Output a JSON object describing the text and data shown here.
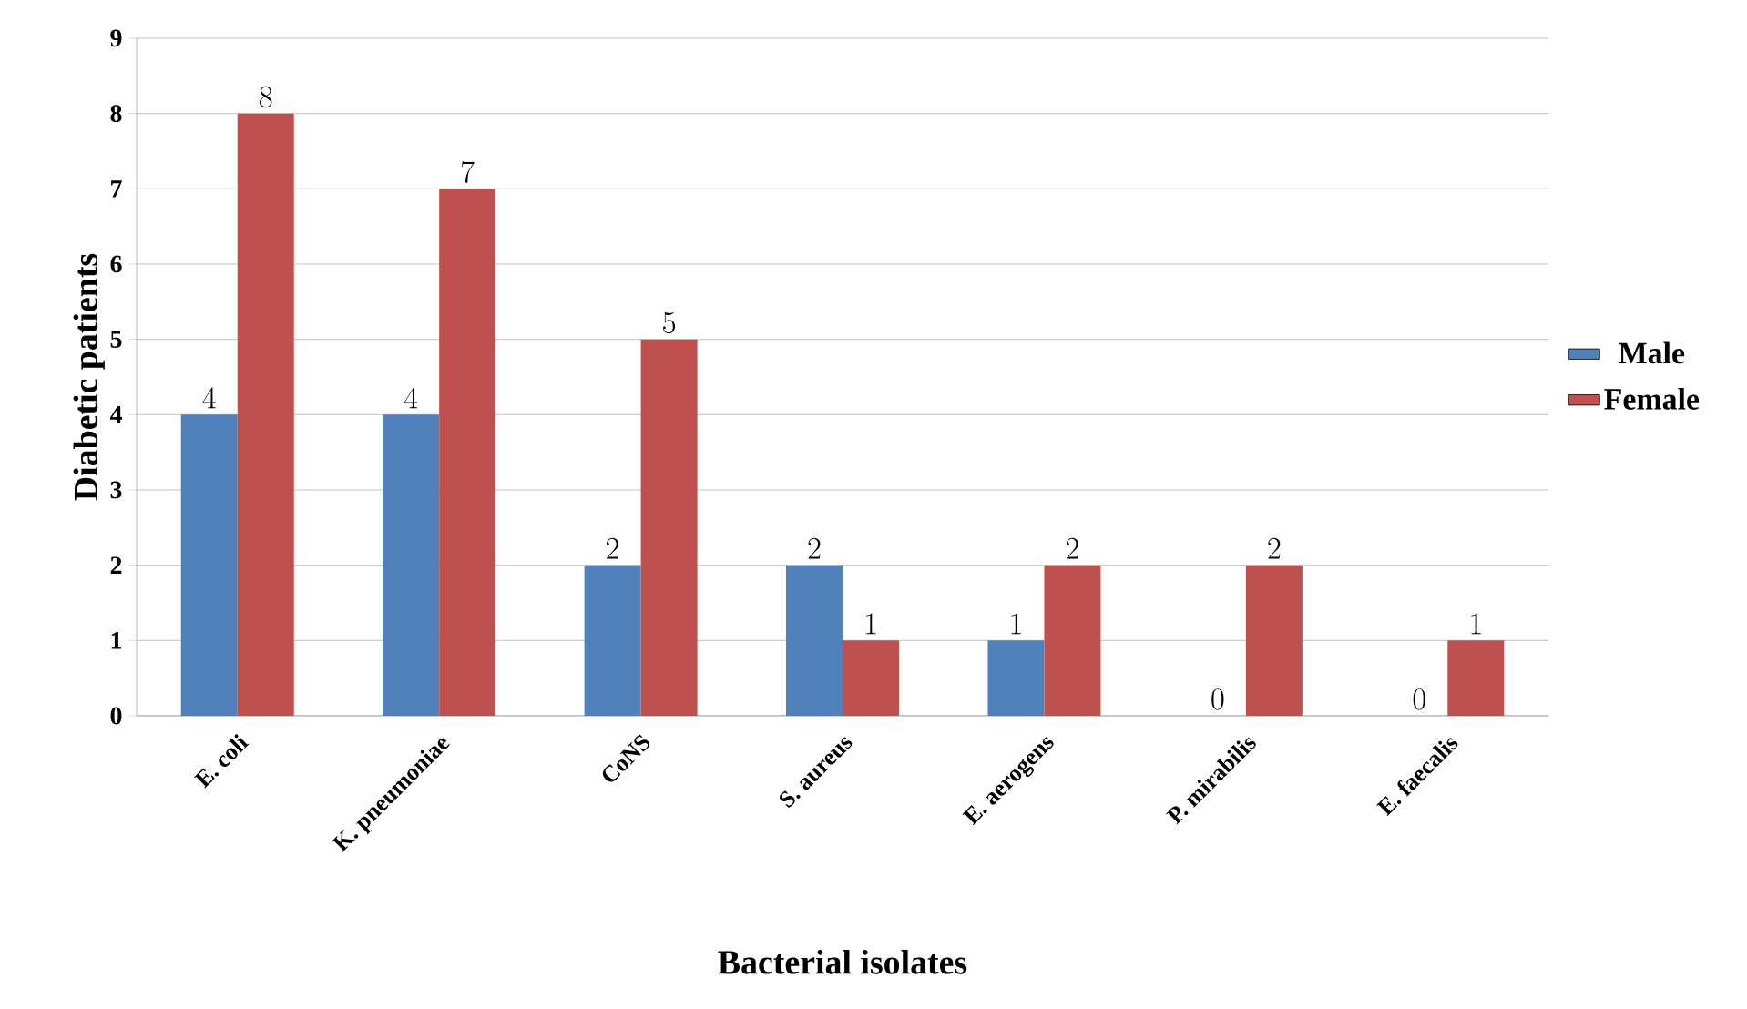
{
  "chart_data": {
    "type": "bar",
    "xlabel": "Bacterial isolates",
    "ylabel": "Diabetic patients",
    "categories": [
      "E. coli",
      "K. pneumoniae",
      "CoNS",
      "S. aureus",
      "E. aerogens",
      "P. mirabilis",
      "E. faecalis"
    ],
    "series": [
      {
        "name": "Male",
        "color": "#4f81bd",
        "values": [
          4,
          4,
          2,
          2,
          1,
          0,
          0
        ]
      },
      {
        "name": "Female",
        "color": "#c0504d",
        "values": [
          8,
          7,
          5,
          1,
          2,
          2,
          1
        ]
      }
    ],
    "ylim": [
      0,
      9
    ],
    "yticks": [
      0,
      1,
      2,
      3,
      4,
      5,
      6,
      7,
      8,
      9
    ],
    "grid": "y",
    "legend": "right",
    "data_labels": true
  }
}
